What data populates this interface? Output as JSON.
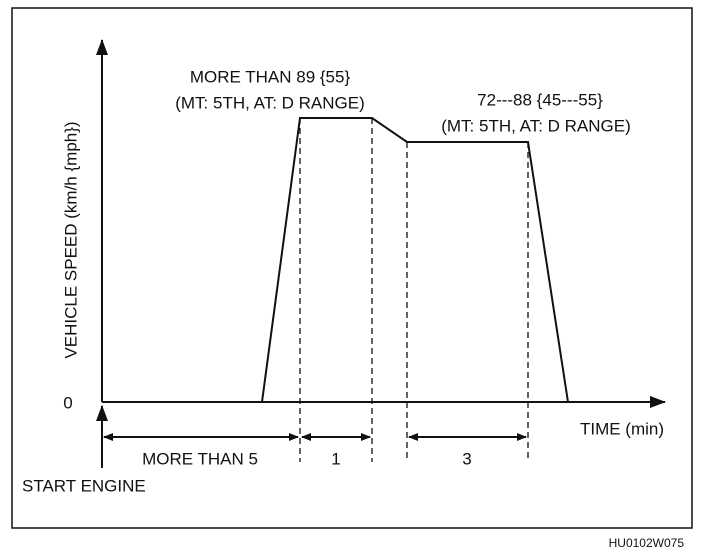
{
  "diagram": {
    "y_axis_label": "VEHICLE SPEED (km/h {mph})",
    "origin_label": "0",
    "x_axis_label": "TIME (min)",
    "annotations": [
      {
        "lines": [
          "MORE THAN 89 {55}",
          "(MT: 5TH, AT: D RANGE)"
        ]
      },
      {
        "lines": [
          "72---88 {45---55}",
          "(MT: 5TH, AT: D RANGE)"
        ]
      }
    ],
    "intervals": [
      "MORE THAN 5",
      "1",
      "3"
    ],
    "start_label": "START ENGINE"
  },
  "figure_id": "HU0102W075"
}
